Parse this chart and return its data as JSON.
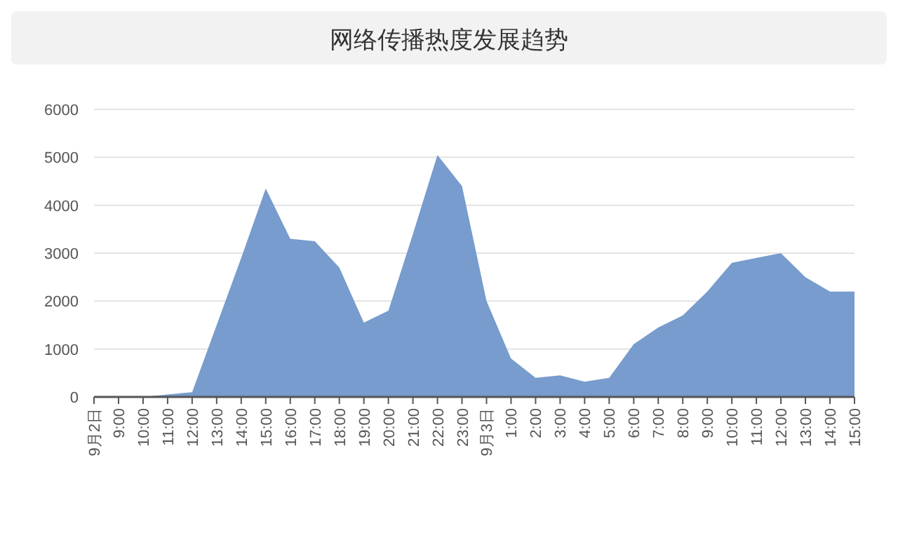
{
  "chart_data": {
    "type": "area",
    "title": "网络传播热度发展趋势",
    "categories": [
      "9月2日",
      "9:00",
      "10:00",
      "11:00",
      "12:00",
      "13:00",
      "14:00",
      "15:00",
      "16:00",
      "17:00",
      "18:00",
      "19:00",
      "20:00",
      "21:00",
      "22:00",
      "23:00",
      "9月3日",
      "1:00",
      "2:00",
      "3:00",
      "4:00",
      "5:00",
      "6:00",
      "7:00",
      "8:00",
      "9:00",
      "10:00",
      "11:00",
      "12:00",
      "13:00",
      "14:00",
      "15:00"
    ],
    "series": [
      {
        "color": "#779ccd",
        "values": [
          0,
          0,
          0,
          50,
          100,
          1500,
          2900,
          4350,
          3300,
          3250,
          2700,
          1550,
          1800,
          3400,
          5050,
          4400,
          2000,
          800,
          400,
          450,
          320,
          400,
          1100,
          1450,
          1700,
          2200,
          2800,
          2900,
          3000,
          2500,
          2200,
          2200
        ]
      }
    ],
    "ylim": [
      0,
      6000
    ],
    "yticks": [
      0,
      1000,
      2000,
      3000,
      4000,
      5000,
      6000
    ],
    "grid": "y"
  }
}
